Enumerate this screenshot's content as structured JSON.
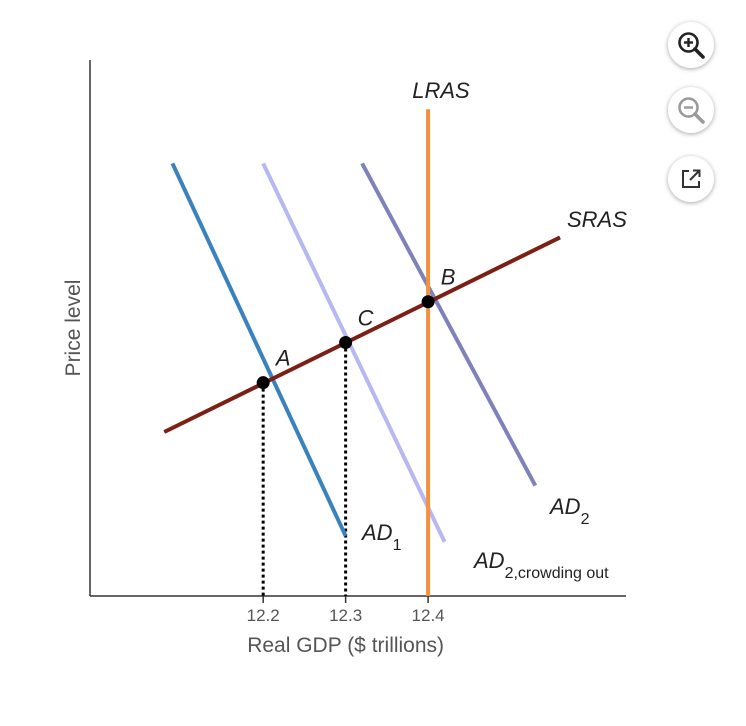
{
  "chart_data": {
    "type": "line",
    "title": "",
    "xlabel": "Real GDP ($ trillions)",
    "ylabel": "Price level",
    "x_ticks": [
      "12.2",
      "12.3",
      "12.4"
    ],
    "x_tick_values": [
      12.2,
      12.3,
      12.4
    ],
    "xlim": [
      11.99,
      12.64
    ],
    "ylim": [
      0,
      100
    ],
    "series": [
      {
        "id": "ad1",
        "name": "AD",
        "subscript": "1",
        "color": "#3a82be",
        "points": [
          [
            12.09,
            80.7
          ],
          [
            12.3,
            11.2
          ]
        ]
      },
      {
        "id": "ad2co",
        "name": "AD",
        "subscript": "2,crowding out",
        "color": "#b7b8f2",
        "points": [
          [
            12.2,
            80.7
          ],
          [
            12.42,
            10.1
          ]
        ]
      },
      {
        "id": "ad2",
        "name": "AD",
        "subscript": "2",
        "color": "#7f82ba",
        "points": [
          [
            12.32,
            80.7
          ],
          [
            12.53,
            20.6
          ]
        ]
      },
      {
        "id": "sras",
        "name": "SRAS",
        "subscript": "",
        "color": "#7c1f14",
        "points": [
          [
            12.08,
            30.6
          ],
          [
            12.56,
            66.9
          ]
        ]
      },
      {
        "id": "lras",
        "name": "LRAS",
        "subscript": "",
        "color": "#f0923e",
        "points": [
          [
            12.4,
            0
          ],
          [
            12.4,
            90.8
          ]
        ]
      }
    ],
    "points": [
      {
        "label": "A",
        "x": 12.2,
        "y": 39.8
      },
      {
        "label": "C",
        "x": 12.3,
        "y": 47.3
      },
      {
        "label": "B",
        "x": 12.4,
        "y": 54.9
      }
    ],
    "guide_lines": [
      {
        "x": 12.2,
        "y_top": 39.8
      },
      {
        "x": 12.3,
        "y_top": 47.3
      }
    ]
  },
  "toolbar": {
    "zoom_in_icon": "zoom-in-icon",
    "zoom_out_icon": "zoom-out-icon",
    "popout_icon": "external-link-icon"
  }
}
